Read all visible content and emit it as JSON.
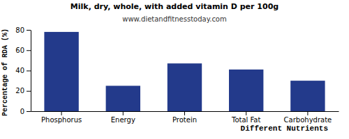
{
  "chart_data": {
    "type": "bar",
    "title": "Milk, dry, whole, with added vitamin D per 100g",
    "subtitle": "www.dietandfitnesstoday.com",
    "xlabel": "Different Nutrients",
    "ylabel": "Percentage of RDA (%)",
    "categories": [
      "Phosphorus",
      "Energy",
      "Protein",
      "Total Fat",
      "Carbohydrate"
    ],
    "values": [
      78,
      25,
      47,
      41,
      30
    ],
    "color": "#233a8b",
    "ylim": [
      0,
      80
    ],
    "yticks": [
      0,
      20,
      40,
      60,
      80
    ],
    "grid": false
  }
}
